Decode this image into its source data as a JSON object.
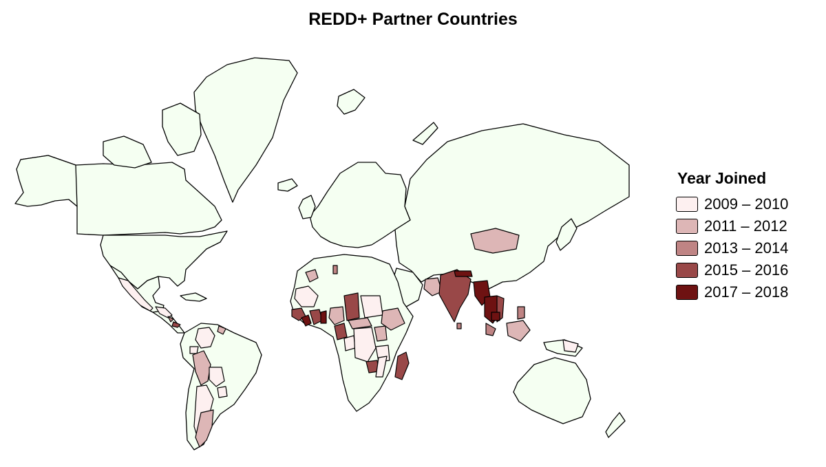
{
  "title": "REDD+ Partner Countries",
  "colors": {
    "land": "#f5fff2",
    "border": "#000000",
    "water": "#ffffff"
  },
  "legend": {
    "title": "Year Joined",
    "items": [
      {
        "label": "2009 – 2010",
        "color": "#fdf0f0"
      },
      {
        "label": "2011 – 2012",
        "color": "#ddb6b6"
      },
      {
        "label": "2013 – 2014",
        "color": "#bf8484"
      },
      {
        "label": "2015 – 2016",
        "color": "#994848"
      },
      {
        "label": "2017 – 2018",
        "color": "#6e1212"
      }
    ]
  }
}
